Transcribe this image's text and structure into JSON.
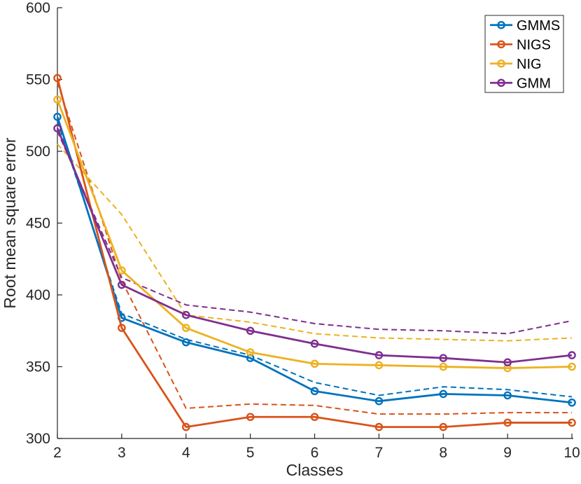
{
  "figure": {
    "background": "#ffffff",
    "axis_color": "#262626",
    "legend_border_color": "#4d4d4d"
  },
  "chart_data": {
    "type": "line",
    "title": "",
    "xlabel": "Classes",
    "ylabel": "Root mean square error",
    "x": [
      2,
      3,
      4,
      5,
      6,
      7,
      8,
      9,
      10
    ],
    "xlim": [
      2,
      10
    ],
    "ylim": [
      300,
      600
    ],
    "xticks": [
      2,
      3,
      4,
      5,
      6,
      7,
      8,
      9,
      10
    ],
    "yticks": [
      300,
      350,
      400,
      450,
      500,
      550,
      600
    ],
    "grid": false,
    "legend_position": "top-right",
    "legend": {
      "items": [
        "GMMS",
        "NIGS",
        "NIG",
        "GMM"
      ]
    },
    "series": [
      {
        "name": "GMMS",
        "color": "#0072BD",
        "style": "solid",
        "marker": "circle",
        "in_legend": true,
        "values": [
          524,
          384,
          367,
          356,
          333,
          326,
          331,
          330,
          325
        ]
      },
      {
        "name": "NIGS",
        "color": "#D95319",
        "style": "solid",
        "marker": "circle",
        "in_legend": true,
        "values": [
          551,
          377,
          308,
          315,
          315,
          308,
          308,
          311,
          311
        ]
      },
      {
        "name": "NIG",
        "color": "#EDB120",
        "style": "solid",
        "marker": "circle",
        "in_legend": true,
        "values": [
          536,
          417,
          377,
          360,
          352,
          351,
          350,
          349,
          350
        ]
      },
      {
        "name": "GMM",
        "color": "#7E2F8E",
        "style": "solid",
        "marker": "circle",
        "in_legend": true,
        "values": [
          516,
          407,
          386,
          375,
          366,
          358,
          356,
          353,
          358
        ]
      },
      {
        "name": "GMMS-dashed",
        "color": "#0072BD",
        "style": "dashed",
        "marker": "none",
        "in_legend": false,
        "values": [
          521,
          387,
          369,
          358,
          339,
          330,
          336,
          334,
          329
        ]
      },
      {
        "name": "NIGS-dashed",
        "color": "#D95319",
        "style": "dashed",
        "marker": "none",
        "in_legend": false,
        "values": [
          548,
          410,
          321,
          324,
          323,
          317,
          317,
          318,
          318
        ]
      },
      {
        "name": "NIG-dashed",
        "color": "#EDB120",
        "style": "dashed",
        "marker": "none",
        "in_legend": false,
        "values": [
          505,
          456,
          386,
          381,
          373,
          370,
          369,
          368,
          370
        ]
      },
      {
        "name": "GMM-dashed",
        "color": "#7E2F8E",
        "style": "dashed",
        "marker": "none",
        "in_legend": false,
        "values": [
          514,
          412,
          393,
          388,
          380,
          376,
          375,
          373,
          382
        ]
      }
    ]
  }
}
